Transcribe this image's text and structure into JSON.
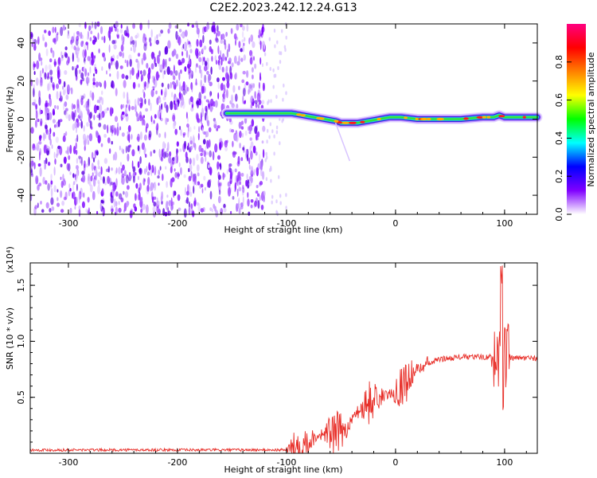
{
  "title": "C2E2.2023.242.12.24.G13",
  "chart_data": [
    {
      "type": "heatmap",
      "xlabel": "Height of straight line (km)",
      "ylabel": "Frequency (Hz)",
      "xlim": [
        -335,
        130
      ],
      "ylim": [
        -50,
        50
      ],
      "x_ticks": [
        -300,
        -200,
        -100,
        0,
        100
      ],
      "y_ticks": [
        -40,
        -20,
        0,
        20,
        40
      ],
      "ridge": {
        "x": [
          -155,
          -140,
          -125,
          -110,
          -95,
          -85,
          -75,
          -65,
          -55,
          -50,
          -45,
          -35,
          -25,
          -15,
          -5,
          5,
          20,
          40,
          60,
          80,
          90,
          95,
          100,
          115,
          130
        ],
        "y": [
          3,
          3,
          3,
          3,
          3,
          2,
          1,
          0,
          -1,
          -2,
          -2,
          -2,
          -1,
          0,
          1,
          1,
          0,
          0,
          0,
          1,
          1,
          2,
          1,
          1,
          1
        ]
      },
      "colorbar": {
        "label": "Normalized spectral amplitude",
        "range": [
          0,
          1
        ],
        "ticks": [
          "0.0",
          "0.2",
          "0.4",
          "0.6",
          "0.8"
        ],
        "colors": [
          "#ffffff",
          "#8000ff",
          "#0000ff",
          "#00ffff",
          "#00ff00",
          "#ffff00",
          "#ff8000",
          "#ff0000",
          "#ff0080"
        ]
      }
    },
    {
      "type": "line",
      "xlabel": "Height of straight line (km)",
      "ylabel": "SNR (10 * v/v)",
      "y_multiplier": "(x10⁴)",
      "xlim": [
        -335,
        130
      ],
      "ylim": [
        0,
        1.7
      ],
      "x_ticks": [
        -300,
        -200,
        -100,
        0,
        100
      ],
      "y_ticks": [
        "0.5",
        "1.0",
        "1.5"
      ],
      "color": "#e8302a",
      "series": [
        {
          "x": [
            -335,
            -100,
            -85,
            -75,
            -65,
            -55,
            -45,
            -35,
            -25,
            -15,
            -5,
            5,
            20,
            40,
            60,
            80,
            90,
            95,
            97,
            100,
            105,
            130
          ],
          "y": [
            0.03,
            0.03,
            0.08,
            0.14,
            0.18,
            0.17,
            0.22,
            0.38,
            0.45,
            0.5,
            0.53,
            0.6,
            0.75,
            0.84,
            0.86,
            0.86,
            0.86,
            0.85,
            0.86,
            0.85,
            0.85,
            0.85
          ]
        }
      ]
    }
  ]
}
